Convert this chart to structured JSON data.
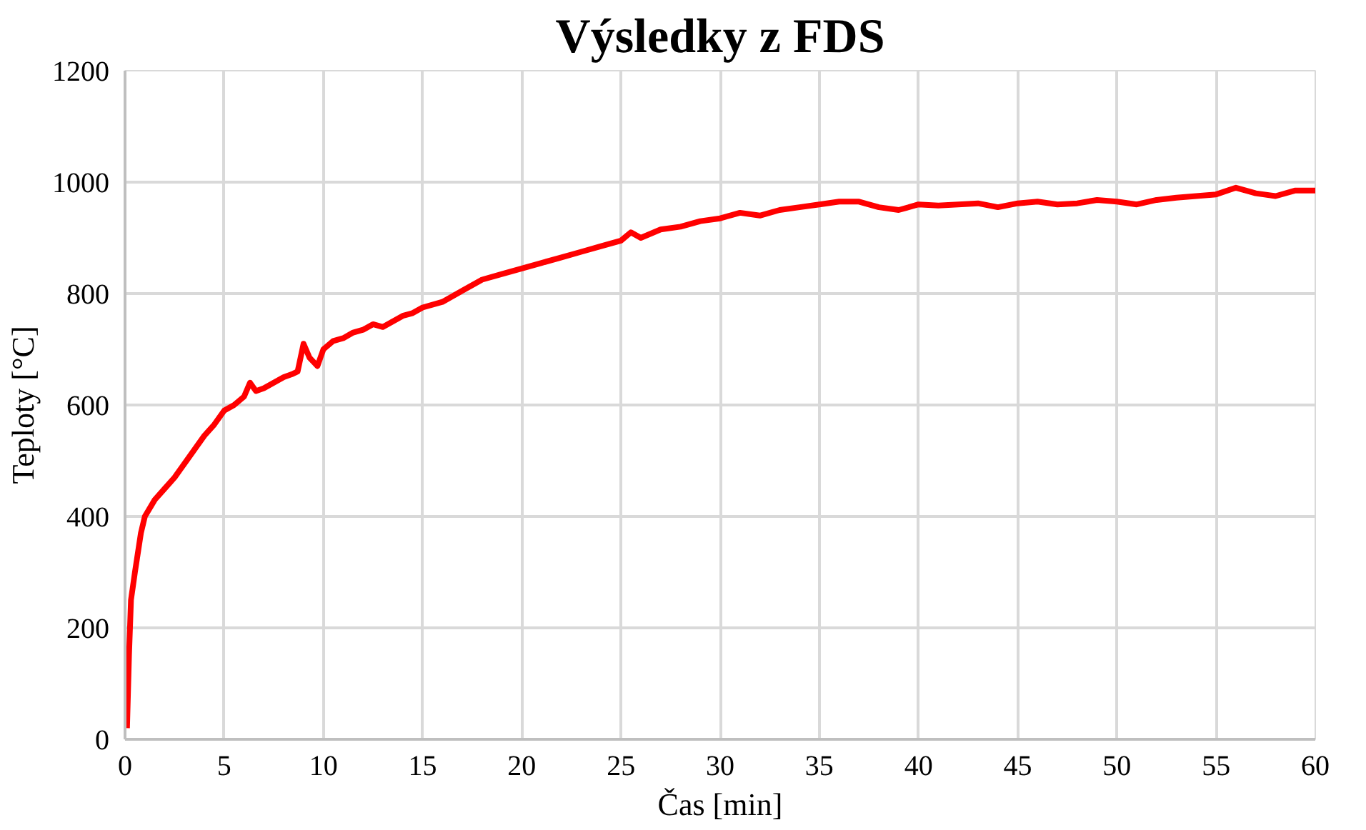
{
  "chart_data": {
    "type": "line",
    "title": "Výsledky z FDS",
    "xlabel": "Čas [min]",
    "ylabel": "Teploty [°C]",
    "xlim": [
      0,
      60
    ],
    "xticks": [
      0,
      5,
      10,
      15,
      20,
      25,
      30,
      35,
      40,
      45,
      50,
      55,
      60
    ],
    "ylim": [
      0,
      1200
    ],
    "yticks": [
      0,
      200,
      400,
      600,
      800,
      1000,
      1200
    ],
    "grid": true,
    "marker": "none",
    "line_style": "solid",
    "series": [
      {
        "color": "#ff0000",
        "x": [
          0.1,
          0.2,
          0.3,
          0.5,
          0.8,
          1.0,
          1.5,
          2,
          2.5,
          3,
          3.5,
          4,
          4.5,
          5,
          5.5,
          6,
          6.3,
          6.6,
          7,
          7.5,
          8,
          8.4,
          8.7,
          9.0,
          9.3,
          9.7,
          10,
          10.5,
          11,
          11.5,
          12,
          12.5,
          13,
          13.5,
          14,
          14.5,
          15,
          16,
          17,
          18,
          19,
          20,
          21,
          22,
          23,
          24,
          25,
          25.5,
          26,
          27,
          28,
          29,
          30,
          31,
          32,
          33,
          34,
          35,
          36,
          37,
          38,
          39,
          40,
          41,
          42,
          43,
          44,
          45,
          46,
          47,
          48,
          49,
          50,
          51,
          52,
          53,
          54,
          55,
          56,
          57,
          58,
          59,
          60
        ],
        "values": [
          20,
          150,
          250,
          300,
          370,
          400,
          430,
          450,
          470,
          495,
          520,
          545,
          565,
          590,
          600,
          615,
          640,
          625,
          630,
          640,
          650,
          655,
          660,
          710,
          685,
          670,
          700,
          715,
          720,
          730,
          735,
          745,
          740,
          750,
          760,
          765,
          775,
          785,
          805,
          825,
          835,
          845,
          855,
          865,
          875,
          885,
          895,
          910,
          900,
          915,
          920,
          930,
          935,
          945,
          940,
          950,
          955,
          960,
          965,
          965,
          955,
          950,
          960,
          958,
          960,
          962,
          955,
          962,
          965,
          960,
          962,
          968,
          965,
          960,
          968,
          972,
          975,
          978,
          990,
          980,
          975,
          985,
          985
        ]
      }
    ]
  }
}
